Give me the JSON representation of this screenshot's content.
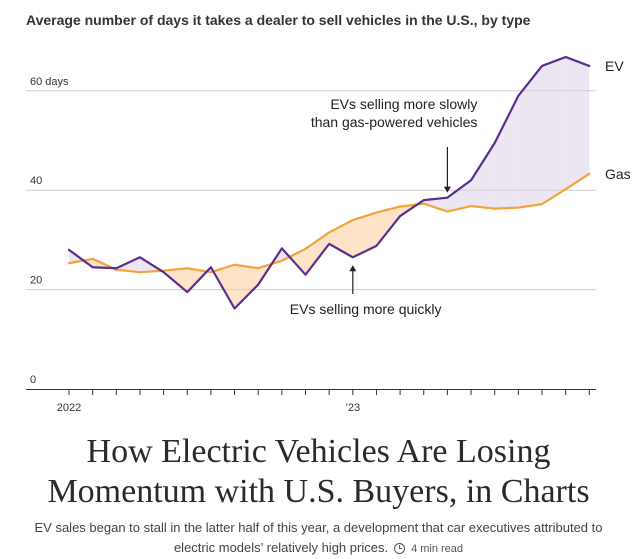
{
  "chart_data": {
    "type": "line",
    "title": "Average number of days it takes a dealer to sell vehicles in the U.S., by type",
    "ylim": [
      0,
      67
    ],
    "y_ticks": [
      {
        "value": 0,
        "label": "0"
      },
      {
        "value": 20,
        "label": "20"
      },
      {
        "value": 40,
        "label": "40"
      },
      {
        "value": 60,
        "label": "60 days"
      }
    ],
    "x_tick_labels": [
      {
        "index": 0,
        "label": "2022"
      },
      {
        "index": 12,
        "label": "’23"
      }
    ],
    "grid": true,
    "series": [
      {
        "name": "EV",
        "color": "#5b2d8e",
        "values": [
          28,
          24.5,
          24.3,
          26.5,
          23.5,
          19.5,
          24.5,
          16.2,
          21,
          28.3,
          23,
          29.2,
          26.5,
          28.8,
          34.8,
          38,
          38.5,
          42,
          49.5,
          59,
          65,
          66.8,
          65
        ]
      },
      {
        "name": "Gas",
        "color": "#f2a33a",
        "values": [
          25.3,
          26.2,
          24,
          23.5,
          23.8,
          24.3,
          23.5,
          25,
          24.3,
          25.8,
          28.2,
          31.5,
          34,
          35.5,
          36.7,
          37.3,
          35.7,
          36.8,
          36.3,
          36.5,
          37.2,
          40.2,
          43.3
        ]
      }
    ],
    "annotations": [
      {
        "id": "slow",
        "lines": [
          "EVs selling more slowly",
          "than gas-powered vehicles"
        ],
        "point_index": 16,
        "direction": "down"
      },
      {
        "id": "quick",
        "lines": [
          "EVs selling more quickly"
        ],
        "point_index": 12,
        "direction": "up"
      }
    ],
    "colors": {
      "fill_ev_slower": "#ece6f3",
      "fill_ev_faster": "#fde4c8",
      "grid": "#cfcfcf",
      "axis": "#333333"
    }
  },
  "headline": {
    "line1": "How Electric Vehicles Are Losing",
    "line2": "Momentum with U.S. Buyers, in Charts"
  },
  "dek": {
    "line1": "EV sales began to stall in the latter half of this year, a development that car executives attributed to",
    "line2": "electric models’ relatively high prices.",
    "read_time": "4 min read",
    "read_time_icon": "clock-icon"
  }
}
